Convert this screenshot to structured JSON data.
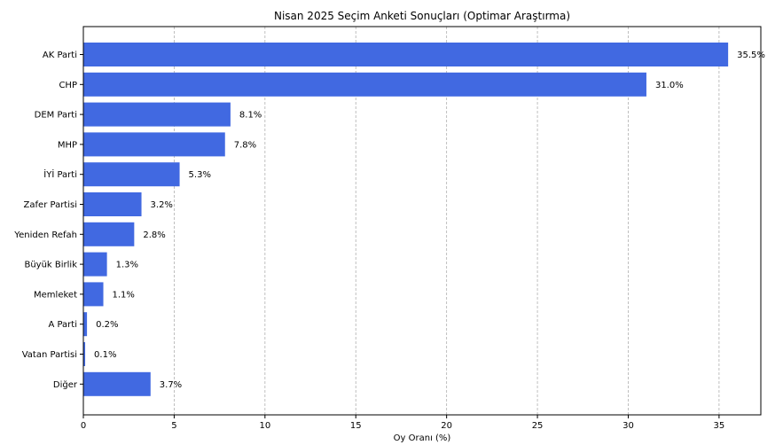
{
  "chart_data": {
    "type": "bar",
    "orientation": "horizontal",
    "title": "Nisan 2025 Seçim Anketi Sonuçları (Optimar Araştırma)",
    "xlabel": "Oy Oranı (%)",
    "ylabel": "",
    "xlim": [
      0,
      37.3
    ],
    "xticks": [
      "0",
      "5",
      "10",
      "15",
      "20",
      "25",
      "30",
      "35"
    ],
    "grid": "vertical-dashed",
    "bar_color": "#4169e1",
    "categories": [
      "AK Parti",
      "CHP",
      "DEM Parti",
      "MHP",
      "İYİ Parti",
      "Zafer Partisi",
      "Yeniden Refah",
      "Büyük Birlik",
      "Memleket",
      "A Parti",
      "Vatan Partisi",
      "Diğer"
    ],
    "values": [
      35.5,
      31.0,
      8.1,
      7.8,
      5.3,
      3.2,
      2.8,
      1.3,
      1.1,
      0.2,
      0.1,
      3.7
    ],
    "value_labels": [
      "35.5%",
      "31.0%",
      "8.1%",
      "7.8%",
      "5.3%",
      "3.2%",
      "2.8%",
      "1.3%",
      "1.1%",
      "0.2%",
      "0.1%",
      "3.7%"
    ]
  }
}
